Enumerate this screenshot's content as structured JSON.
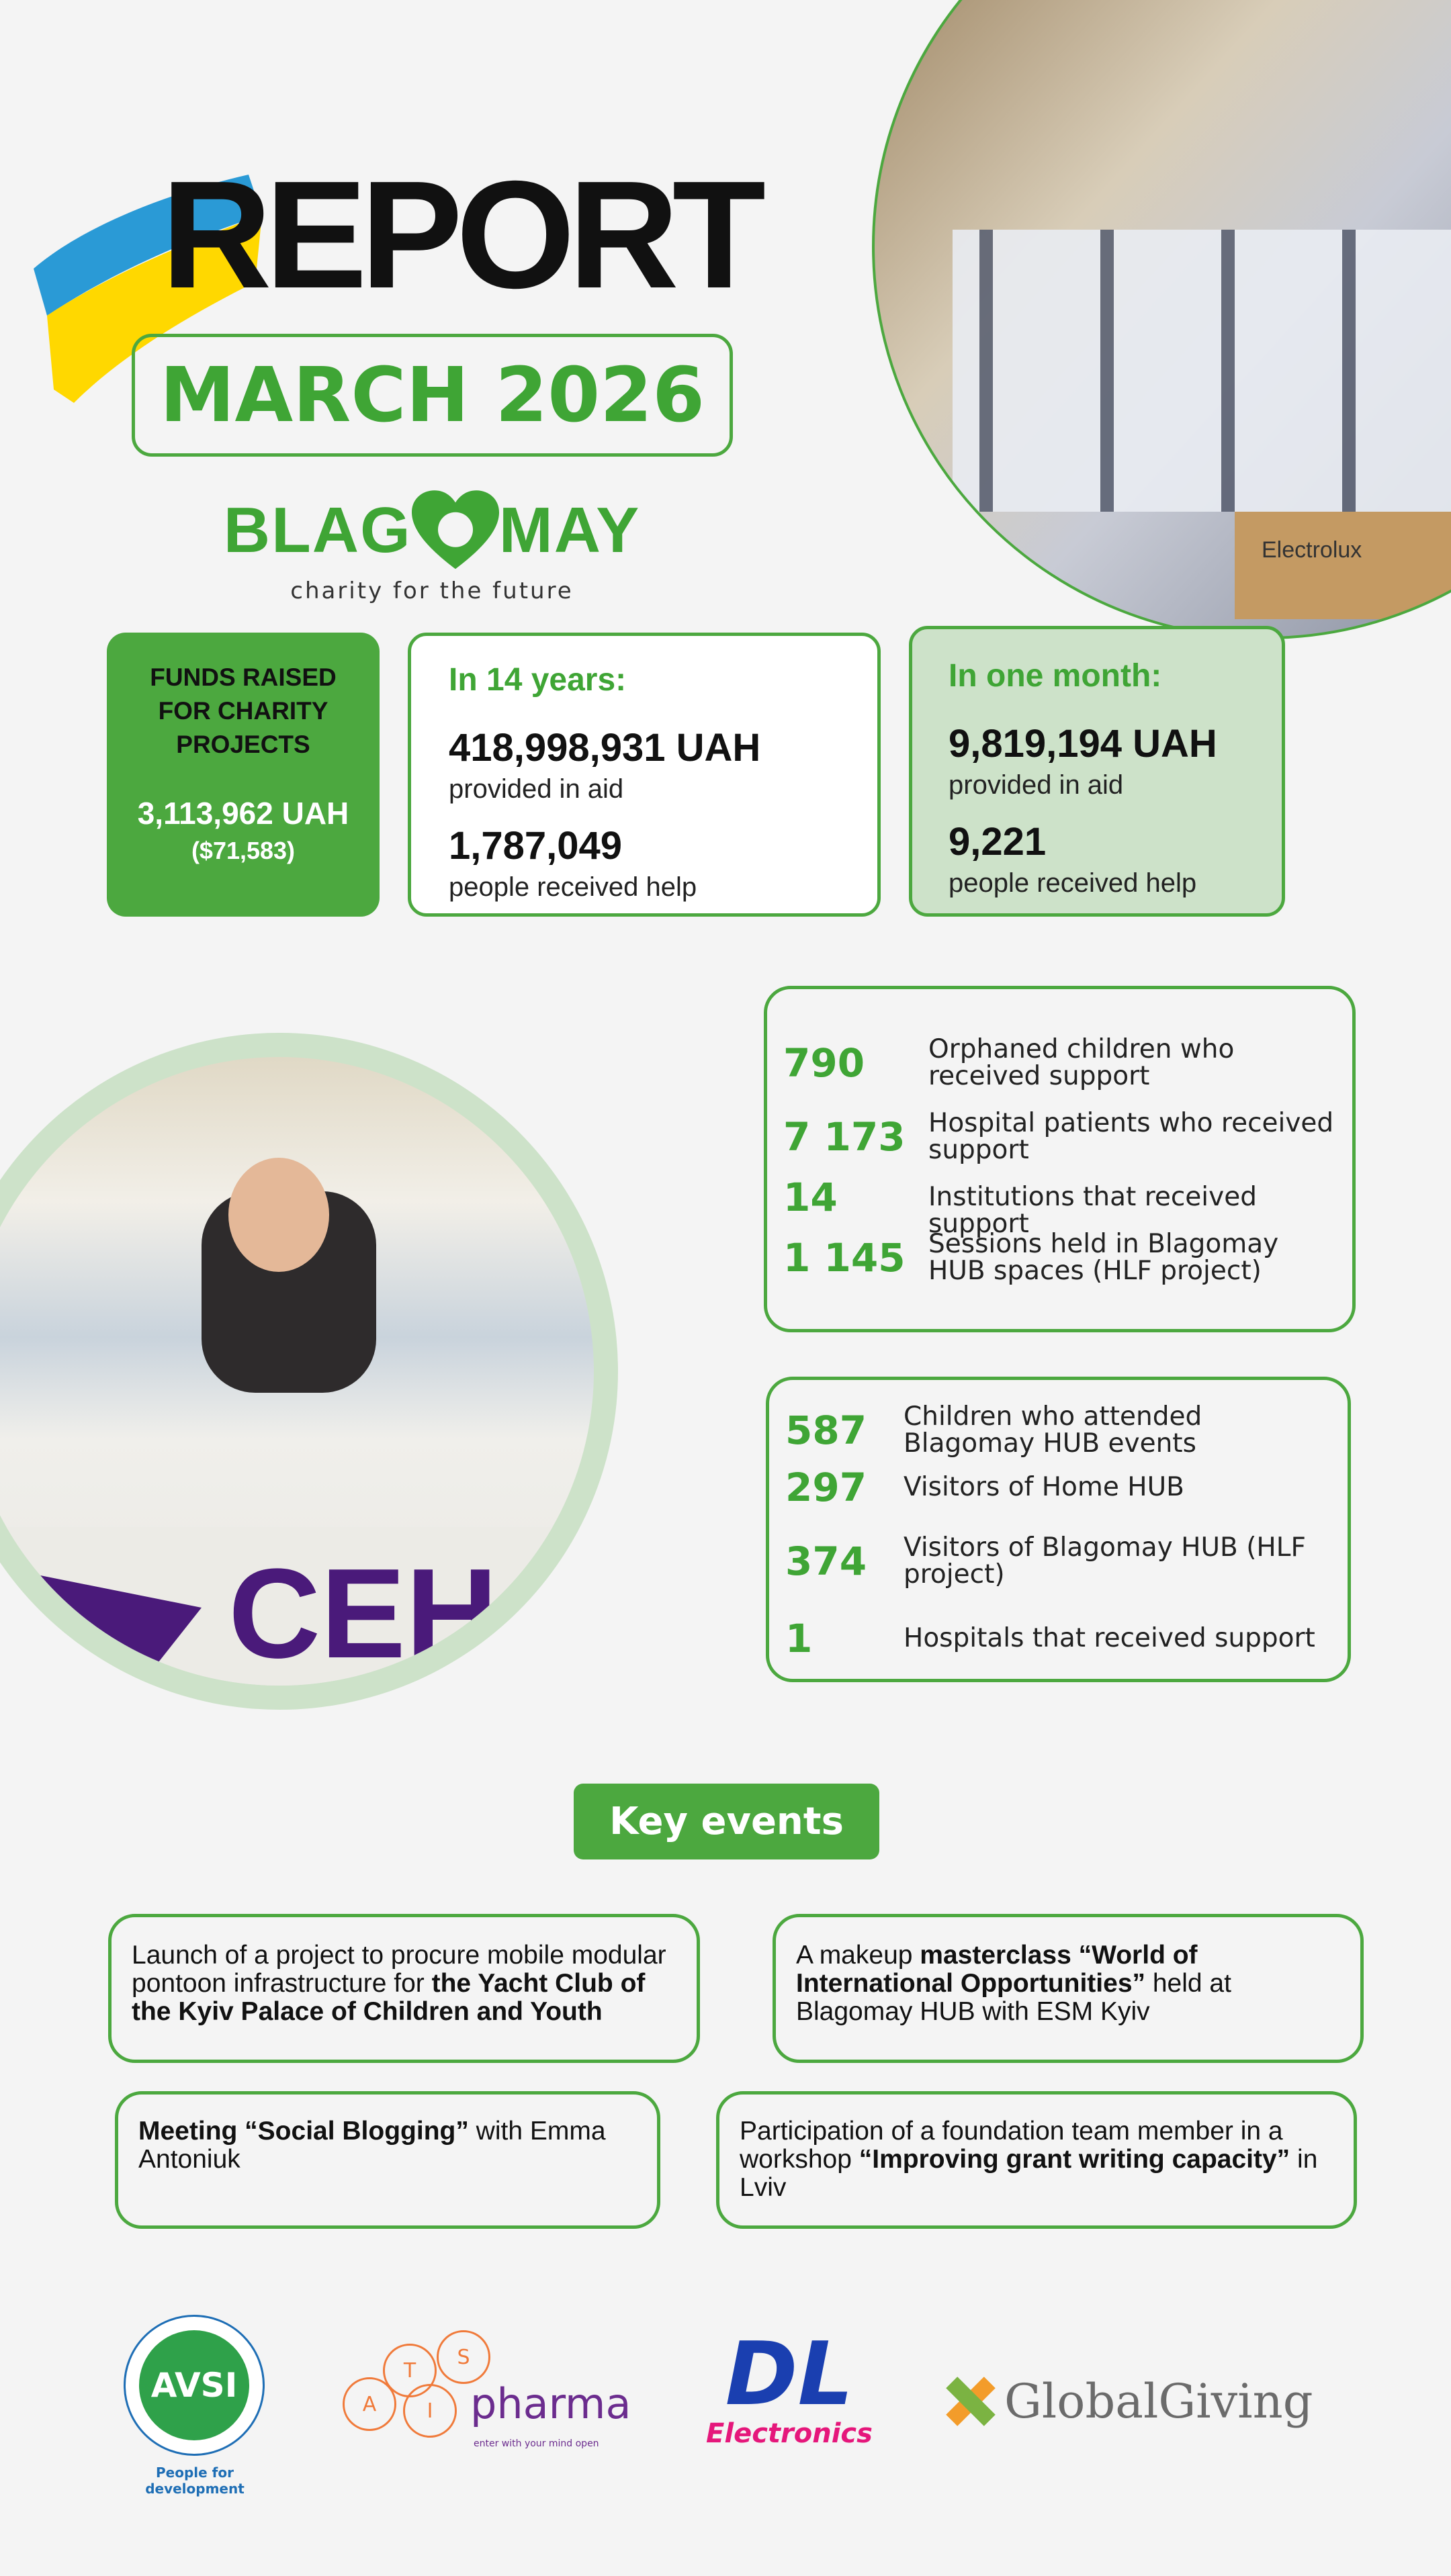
{
  "header": {
    "title": "REPORT",
    "period": "MARCH 2026"
  },
  "brand": {
    "name_left": "BLAG",
    "name_right": "MAY",
    "tagline": "charity for the future",
    "color": "#4ca83f"
  },
  "funds": {
    "title_lines": [
      "FUNDS RAISED",
      "FOR CHARITY",
      "PROJECTS"
    ],
    "value": "3,113,962 UAH",
    "usd": "($71,583)"
  },
  "years": {
    "heading": "In 14 years:",
    "aid_value": "418,998,931 UAH",
    "aid_label": "provided in aid",
    "people_value": "1,787,049",
    "people_label": "people received help"
  },
  "month": {
    "heading": "In one month:",
    "aid_value": "9,819,194 UAH",
    "aid_label": "provided in aid",
    "people_value": "9,221",
    "people_label": "people received help"
  },
  "stats1": [
    {
      "n": "790",
      "d": "Orphaned children who received support"
    },
    {
      "n": "7 173",
      "d": "Hospital patients who received support"
    },
    {
      "n": "14",
      "d": "Institutions that received support"
    },
    {
      "n": "1 145",
      "d": "Sessions held in Blagomay HUB spaces (HLF project)"
    }
  ],
  "stats2": [
    {
      "n": "587",
      "d": "Children who attended Blagomay HUB events"
    },
    {
      "n": "297",
      "d": "Visitors of Home HUB"
    },
    {
      "n": "374",
      "d": "Visitors of Blagomay HUB (HLF project)"
    },
    {
      "n": "1",
      "d": "Hospitals that received support"
    }
  ],
  "key_events": {
    "title": "Key events",
    "items": [
      {
        "pre": "Launch of a project to procure mobile modular pontoon infrastructure for ",
        "bold": "the Yacht Club of the Kyiv Palace of Children and Youth",
        "post": ""
      },
      {
        "pre": "A makeup ",
        "bold": "masterclass “World of International Opportunities”",
        "post": " held at Blagomay HUB with ESM Kyiv"
      },
      {
        "pre": "",
        "bold": "Meeting “Social Blogging”",
        "post": " with Emma Antoniuk"
      },
      {
        "pre": "Participation of a foundation team member in a workshop  ",
        "bold": "“Improving grant writing capacity”",
        "post": " in Lviv"
      }
    ]
  },
  "photos": {
    "top_box_text": "Electrolux",
    "bottom_banner_text": "CEH"
  },
  "partners": {
    "avsi": "AVSI",
    "avsi_tagline": "People for development",
    "atis_letters": [
      "A",
      "T",
      "I",
      "S"
    ],
    "pharma": "pharma",
    "pharma_tagline": "enter with your mind open",
    "dl": "DL",
    "dl_sub": "Electronics",
    "globalgiving": "GlobalGiving"
  }
}
